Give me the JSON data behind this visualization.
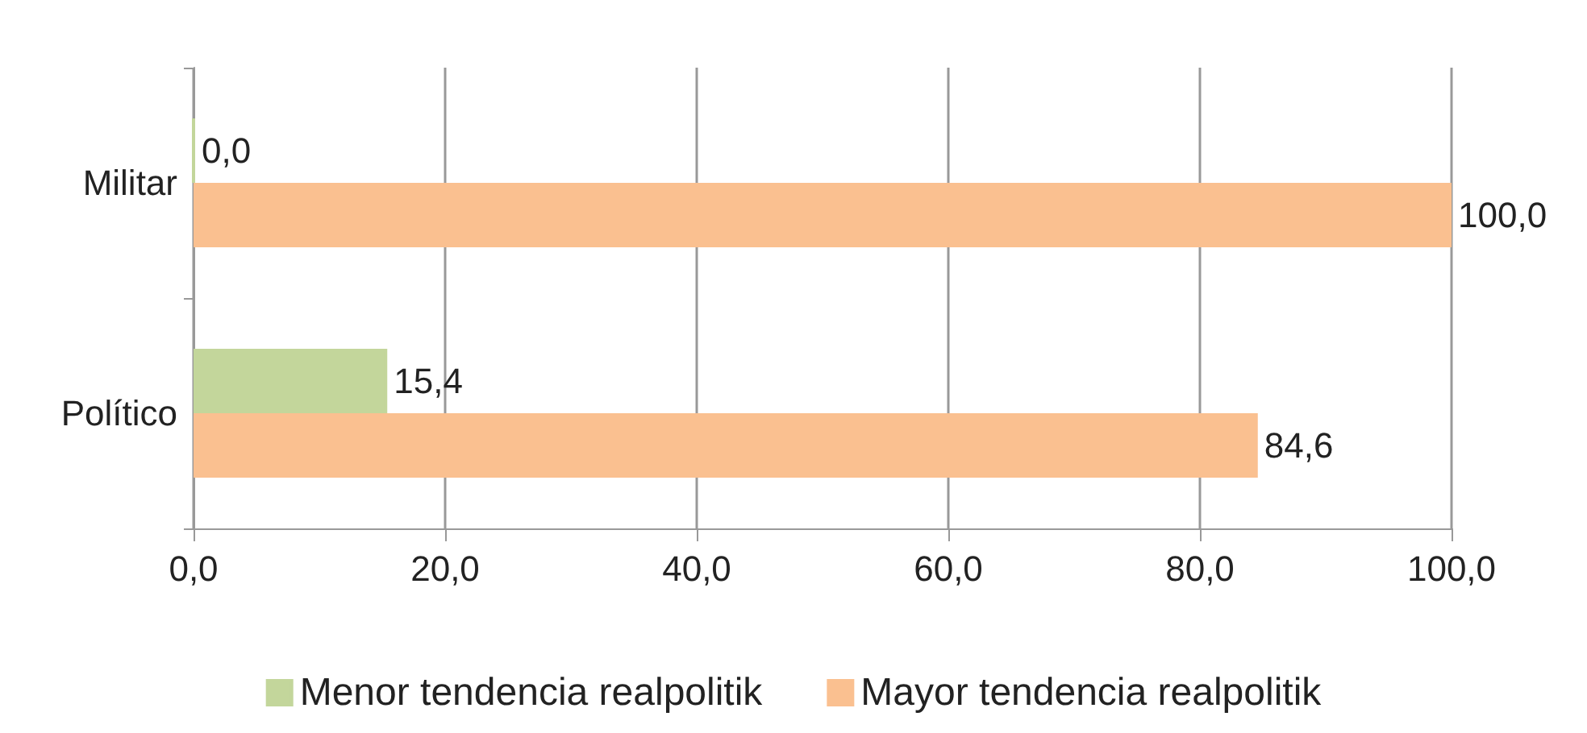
{
  "chart_data": {
    "type": "bar",
    "orientation": "horizontal",
    "categories": [
      "Militar",
      "Político"
    ],
    "series": [
      {
        "name": "Menor tendencia realpolitik",
        "color": "#c3d69b",
        "values": [
          0.0,
          15.4
        ],
        "value_labels": [
          "0,0",
          "15,4"
        ]
      },
      {
        "name": "Mayor tendencia realpolitik",
        "color": "#fac090",
        "values": [
          100.0,
          84.6
        ],
        "value_labels": [
          "100,0",
          "84,6"
        ]
      }
    ],
    "xlim": [
      0,
      100
    ],
    "xticks": [
      {
        "value": 0,
        "label": "0,0"
      },
      {
        "value": 20,
        "label": "20,0"
      },
      {
        "value": 40,
        "label": "40,0"
      },
      {
        "value": 60,
        "label": "60,0"
      },
      {
        "value": 80,
        "label": "80,0"
      },
      {
        "value": 100,
        "label": "100,0"
      }
    ],
    "grid": "x",
    "legend": "bottom"
  }
}
